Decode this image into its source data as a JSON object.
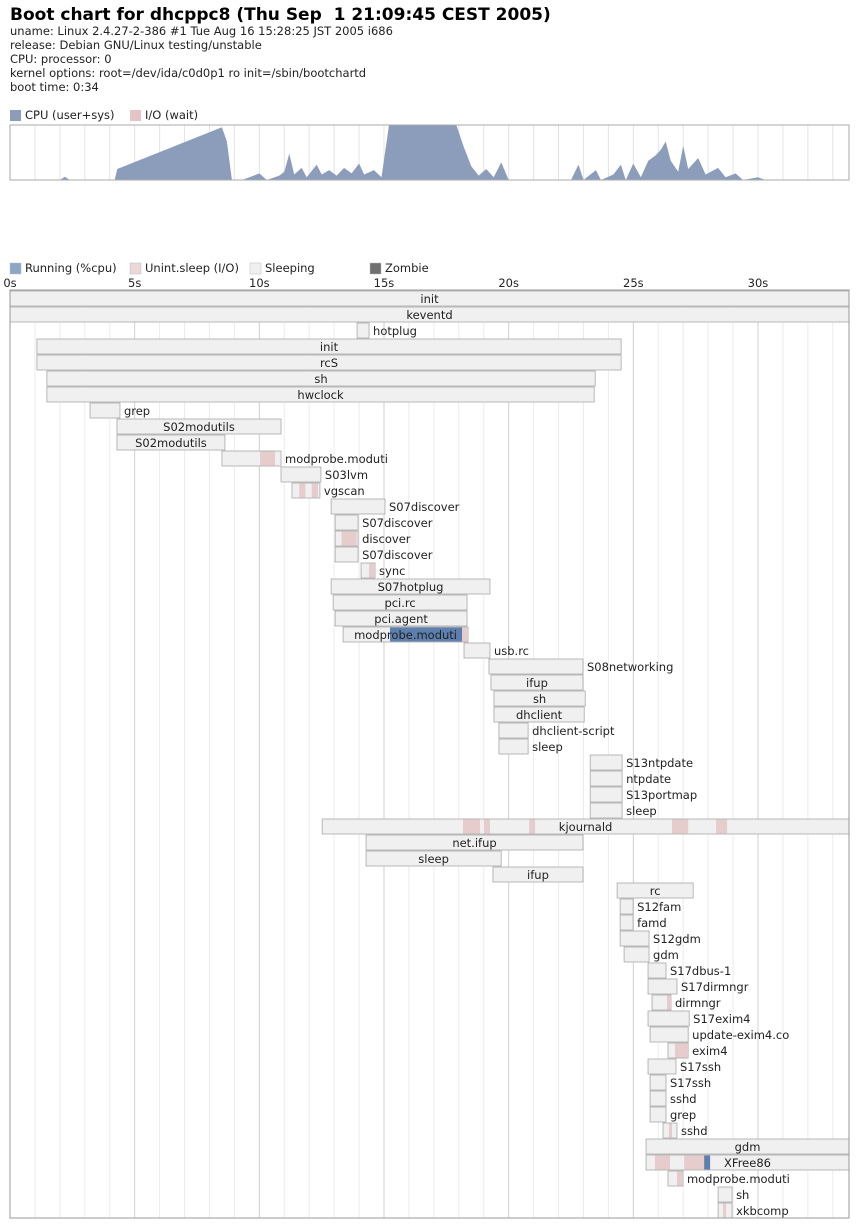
{
  "header": {
    "title": "Boot chart for dhcppc8 (Thu Sep  1 21:09:45 CEST 2005)",
    "lines": [
      "uname: Linux 2.4.27-2-386 #1 Tue Aug 16 15:28:25 JST 2005 i686",
      "release: Debian GNU/Linux testing/unstable",
      "CPU: processor: 0",
      "kernel options: root=/dev/ida/c0d0p1 ro init=/sbin/bootchartd",
      "boot time: 0:34"
    ]
  },
  "chart_data": [
    {
      "type": "area",
      "x": [
        0,
        2.0,
        2.2,
        2.4,
        4.2,
        4.3,
        8.5,
        8.7,
        8.9,
        9.3,
        9.6,
        10.0,
        10.3,
        10.8,
        11.0,
        11.2,
        11.4,
        11.7,
        11.9,
        12.3,
        12.5,
        12.8,
        13.1,
        13.4,
        13.7,
        14.0,
        14.2,
        14.6,
        14.9,
        15.2,
        17.9,
        18.2,
        18.5,
        18.8,
        19.1,
        19.4,
        19.7,
        20.0,
        22.5,
        22.8,
        23.0,
        23.5,
        23.7,
        24.2,
        24.5,
        24.7,
        25.0,
        25.3,
        25.6,
        25.9,
        26.1,
        26.3,
        26.5,
        26.8,
        27.0,
        27.2,
        27.6,
        27.9,
        28.4,
        28.7,
        29.1,
        29.4,
        30.0,
        30.3,
        33.65
      ],
      "series": [
        {
          "name": "CPU (user+sys)",
          "color": "#8c9dbb",
          "values": [
            0,
            0,
            6,
            0,
            0,
            20,
            96,
            70,
            0,
            0,
            5,
            12,
            0,
            8,
            15,
            48,
            10,
            22,
            5,
            28,
            10,
            18,
            8,
            22,
            12,
            30,
            10,
            18,
            5,
            100,
            100,
            60,
            25,
            8,
            20,
            5,
            32,
            0,
            0,
            28,
            0,
            18,
            0,
            10,
            28,
            0,
            30,
            5,
            35,
            45,
            55,
            70,
            35,
            15,
            62,
            20,
            40,
            10,
            22,
            5,
            12,
            0,
            5,
            0,
            0
          ]
        },
        {
          "name": "I/O (wait)",
          "color": "#e4c4c4",
          "values": [
            0,
            0,
            0,
            0,
            0,
            0,
            0,
            0,
            0,
            0,
            0,
            0,
            0,
            0,
            0,
            0,
            0,
            0,
            0,
            0,
            0,
            0,
            0,
            0,
            0,
            0,
            0,
            0,
            0,
            0,
            0,
            0,
            0,
            0,
            0,
            0,
            0,
            0,
            0,
            0,
            0,
            0,
            0,
            0,
            0,
            0,
            0,
            0,
            0,
            0,
            0,
            0,
            0,
            0,
            0,
            0,
            0,
            0,
            0,
            0,
            0,
            0,
            0,
            0,
            0
          ]
        }
      ],
      "xlim": [
        0,
        33.65
      ],
      "ylim": [
        0,
        100
      ],
      "xminorticks": [
        1,
        2,
        3,
        4,
        5,
        6,
        7,
        8,
        9,
        10,
        11,
        12,
        13,
        14,
        15,
        16,
        17,
        18,
        19,
        20,
        21,
        22,
        23,
        24,
        25,
        26,
        27,
        28,
        29,
        30,
        31,
        32,
        33
      ]
    },
    {
      "type": "timeline",
      "legend": [
        {
          "name": "Running (%cpu)",
          "color": "#8ea6c6"
        },
        {
          "name": "Unint.sleep (I/O)",
          "color": "#ecd8d8"
        },
        {
          "name": "Sleeping",
          "color": "#f0f0f0"
        },
        {
          "name": "Zombie",
          "color": "#707070"
        }
      ],
      "xlim": [
        0,
        33.65
      ],
      "xticks": [
        {
          "value": 0,
          "label": "0s"
        },
        {
          "value": 5,
          "label": "5s"
        },
        {
          "value": 10,
          "label": "10s"
        },
        {
          "value": 15,
          "label": "15s"
        },
        {
          "value": 20,
          "label": "20s"
        },
        {
          "value": 25,
          "label": "25s"
        },
        {
          "value": 30,
          "label": "30s"
        }
      ],
      "xminorticks": [
        1,
        2,
        3,
        4,
        6,
        7,
        8,
        9,
        11,
        12,
        13,
        14,
        16,
        17,
        18,
        19,
        21,
        22,
        23,
        24,
        26,
        27,
        28,
        29,
        31,
        32,
        33
      ],
      "processes": [
        {
          "name": "init",
          "start": 0,
          "end": 33.65
        },
        {
          "name": "keventd",
          "start": 0,
          "end": 33.65
        },
        {
          "name": "hotplug",
          "start": 13.92,
          "end": 14.4
        },
        {
          "name": "init",
          "start": 1.08,
          "end": 24.51
        },
        {
          "name": "rcS",
          "start": 1.08,
          "end": 24.51
        },
        {
          "name": "sh",
          "start": 1.48,
          "end": 23.47
        },
        {
          "name": "hwclock",
          "start": 1.48,
          "end": 23.43
        },
        {
          "name": "grep",
          "start": 3.21,
          "end": 4.41
        },
        {
          "name": "S02modutils",
          "start": 4.29,
          "end": 10.87
        },
        {
          "name": "S02modutils",
          "start": 4.29,
          "end": 8.62
        },
        {
          "name": "modprobe.moduti",
          "start": 8.5,
          "end": 10.87,
          "io": [
            [
              10.03,
              10.63
            ]
          ]
        },
        {
          "name": "S03lvm",
          "start": 10.87,
          "end": 12.47
        },
        {
          "name": "vgscan",
          "start": 11.31,
          "end": 12.43,
          "io": [
            [
              11.6,
              11.85
            ],
            [
              12.1,
              12.35
            ]
          ]
        },
        {
          "name": "S07discover",
          "start": 12.88,
          "end": 15.04
        },
        {
          "name": "S07discover",
          "start": 13.04,
          "end": 13.96
        },
        {
          "name": "discover",
          "start": 13.04,
          "end": 13.96,
          "io": [
            [
              13.3,
              13.9
            ]
          ]
        },
        {
          "name": "S07discover",
          "start": 13.04,
          "end": 13.96
        },
        {
          "name": "sync",
          "start": 14.08,
          "end": 14.64,
          "io": [
            [
              14.4,
              14.6
            ]
          ]
        },
        {
          "name": "S07hotplug",
          "start": 12.88,
          "end": 19.25
        },
        {
          "name": "pci.rc",
          "start": 12.96,
          "end": 18.33
        },
        {
          "name": "pci.agent",
          "start": 13.04,
          "end": 18.33
        },
        {
          "name": "modprobe.moduti",
          "start": 13.36,
          "end": 18.37,
          "running": [
            [
              15.24,
              18.13
            ]
          ],
          "io": [
            [
              18.13,
              18.33
            ]
          ]
        },
        {
          "name": "usb.rc",
          "start": 18.21,
          "end": 19.25
        },
        {
          "name": "S08networking",
          "start": 19.21,
          "end": 22.98
        },
        {
          "name": "ifup",
          "start": 19.29,
          "end": 22.98
        },
        {
          "name": "sh",
          "start": 19.41,
          "end": 23.07
        },
        {
          "name": "dhclient",
          "start": 19.41,
          "end": 23.03
        },
        {
          "name": "dhclient-script",
          "start": 19.61,
          "end": 20.78
        },
        {
          "name": "sleep",
          "start": 19.61,
          "end": 20.78
        },
        {
          "name": "S13ntpdate",
          "start": 23.27,
          "end": 24.55
        },
        {
          "name": "ntpdate",
          "start": 23.27,
          "end": 24.55
        },
        {
          "name": "S13portmap",
          "start": 23.27,
          "end": 24.55
        },
        {
          "name": "sleep",
          "start": 23.27,
          "end": 24.55
        },
        {
          "name": "kjournald",
          "start": 12.52,
          "end": 33.65,
          "io": [
            [
              18.17,
              18.85
            ],
            [
              19.01,
              19.25
            ],
            [
              20.82,
              21.06
            ],
            [
              26.55,
              27.2
            ],
            [
              28.32,
              28.76
            ]
          ]
        },
        {
          "name": "net.ifup",
          "start": 14.28,
          "end": 22.98
        },
        {
          "name": "sleep",
          "start": 14.28,
          "end": 19.7
        },
        {
          "name": "ifup",
          "start": 19.37,
          "end": 22.98
        },
        {
          "name": "rc",
          "start": 24.35,
          "end": 27.4
        },
        {
          "name": "S12fam",
          "start": 24.47,
          "end": 24.99
        },
        {
          "name": "famd",
          "start": 24.47,
          "end": 24.99
        },
        {
          "name": "S12gdm",
          "start": 24.47,
          "end": 25.63
        },
        {
          "name": "gdm",
          "start": 24.63,
          "end": 25.63
        },
        {
          "name": "S17dbus-1",
          "start": 25.59,
          "end": 26.31
        },
        {
          "name": "S17dirmngr",
          "start": 25.59,
          "end": 26.75
        },
        {
          "name": "dirmngr",
          "start": 25.75,
          "end": 26.51,
          "io": [
            [
              26.35,
              26.51
            ]
          ]
        },
        {
          "name": "S17exim4",
          "start": 25.59,
          "end": 27.24
        },
        {
          "name": "update-exim4.co",
          "start": 25.67,
          "end": 27.2
        },
        {
          "name": "exim4",
          "start": 26.39,
          "end": 27.2,
          "io": [
            [
              26.67,
              27.2
            ]
          ]
        },
        {
          "name": "S17ssh",
          "start": 25.59,
          "end": 26.71
        },
        {
          "name": "S17ssh",
          "start": 25.67,
          "end": 26.31
        },
        {
          "name": "sshd",
          "start": 25.67,
          "end": 26.31
        },
        {
          "name": "grep",
          "start": 25.67,
          "end": 26.31
        },
        {
          "name": "sshd",
          "start": 26.19,
          "end": 26.75,
          "io": [
            [
              26.43,
              26.55
            ]
          ]
        },
        {
          "name": "gdm",
          "start": 25.51,
          "end": 33.65
        },
        {
          "name": "XFree86",
          "start": 25.51,
          "end": 33.65,
          "running": [
            [
              27.84,
              28.08
            ]
          ],
          "io": [
            [
              25.87,
              26.47
            ],
            [
              27.04,
              27.84
            ]
          ]
        },
        {
          "name": "modprobe.moduti",
          "start": 26.39,
          "end": 26.99,
          "io": [
            [
              26.75,
              26.95
            ]
          ]
        },
        {
          "name": "sh",
          "start": 28.4,
          "end": 28.96
        },
        {
          "name": "xkbcomp",
          "start": 28.4,
          "end": 28.96,
          "io": [
            [
              28.6,
              28.72
            ]
          ]
        }
      ]
    }
  ]
}
